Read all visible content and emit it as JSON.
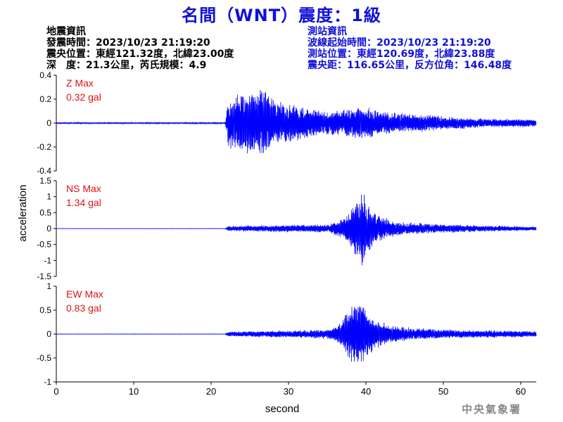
{
  "title": "名間（WNT）震度：1級",
  "quake_info": {
    "heading": "地震資訊",
    "origin_time": "發震時間：2023/10/23 21:19:20",
    "epicenter": "震央位置：東經121.32度，北緯23.00度",
    "depth_mag": "深　度：21.3公里，芮氏規模：4.9"
  },
  "station_info": {
    "heading": "測站資訊",
    "wave_start": "波線起始時間：2023/10/23 21:19:20",
    "location": "測站位置：東經120.69度，北緯23.88度",
    "distance": "震央距：116.65公里，反方位角：146.48度"
  },
  "footer": "中央氣象署",
  "colors": {
    "trace": "#0000ff",
    "label": "#e01010",
    "title": "#1010d8",
    "axis": "#000000"
  },
  "chart_data": {
    "type": "line",
    "xlabel": "second",
    "ylabel": "acceleration",
    "xlim": [
      0,
      62
    ],
    "xticks": [
      0,
      10,
      20,
      30,
      40,
      50,
      60
    ],
    "panels": [
      {
        "name": "Z",
        "label": "Z Max",
        "max_value": "0.32 gal",
        "ylim": [
          -0.4,
          0.4
        ],
        "yticks": [
          -0.4,
          -0.2,
          0,
          0.2,
          0.4
        ],
        "ytick_labels": [
          "-0.4",
          "-0.2",
          "0",
          "0.2",
          "0.4"
        ],
        "envelope": [
          [
            0,
            0.005
          ],
          [
            21.8,
            0.006
          ],
          [
            22.2,
            0.2
          ],
          [
            23,
            0.24
          ],
          [
            25,
            0.26
          ],
          [
            26.5,
            0.3
          ],
          [
            28,
            0.22
          ],
          [
            30,
            0.16
          ],
          [
            32,
            0.14
          ],
          [
            35,
            0.1
          ],
          [
            38,
            0.12
          ],
          [
            40,
            0.14
          ],
          [
            42,
            0.1
          ],
          [
            45,
            0.08
          ],
          [
            50,
            0.06
          ],
          [
            55,
            0.04
          ],
          [
            60,
            0.035
          ],
          [
            62,
            0.03
          ]
        ]
      },
      {
        "name": "NS",
        "label": "NS Max",
        "max_value": "1.34 gal",
        "ylim": [
          -1.5,
          1.5
        ],
        "yticks": [
          -1.5,
          -1,
          -0.5,
          0,
          0.5,
          1,
          1.5
        ],
        "ytick_labels": [
          "-1.5",
          "-1",
          "-0.5",
          "0",
          "0.5",
          "1",
          "1.5"
        ],
        "envelope": [
          [
            0,
            0.003
          ],
          [
            21.8,
            0.004
          ],
          [
            22.2,
            0.08
          ],
          [
            25,
            0.1
          ],
          [
            30,
            0.12
          ],
          [
            35,
            0.12
          ],
          [
            37,
            0.3
          ],
          [
            38,
            0.6
          ],
          [
            39,
            1.0
          ],
          [
            39.5,
            1.3
          ],
          [
            40,
            0.9
          ],
          [
            41,
            0.5
          ],
          [
            43,
            0.3
          ],
          [
            45,
            0.2
          ],
          [
            50,
            0.14
          ],
          [
            55,
            0.1
          ],
          [
            60,
            0.07
          ],
          [
            62,
            0.06
          ]
        ]
      },
      {
        "name": "EW",
        "label": "EW Max",
        "max_value": "0.83 gal",
        "ylim": [
          -1,
          1
        ],
        "yticks": [
          -1,
          -0.5,
          0,
          0.5,
          1
        ],
        "ytick_labels": [
          "-1",
          "-0.5",
          "0",
          "0.5",
          "1"
        ],
        "envelope": [
          [
            0,
            0.003
          ],
          [
            21.8,
            0.004
          ],
          [
            22.2,
            0.05
          ],
          [
            25,
            0.06
          ],
          [
            30,
            0.08
          ],
          [
            35,
            0.1
          ],
          [
            36.5,
            0.2
          ],
          [
            37.5,
            0.45
          ],
          [
            38.5,
            0.7
          ],
          [
            39,
            0.82
          ],
          [
            40,
            0.55
          ],
          [
            41,
            0.35
          ],
          [
            43,
            0.2
          ],
          [
            45,
            0.15
          ],
          [
            50,
            0.1
          ],
          [
            55,
            0.08
          ],
          [
            60,
            0.07
          ],
          [
            62,
            0.06
          ]
        ]
      }
    ]
  }
}
